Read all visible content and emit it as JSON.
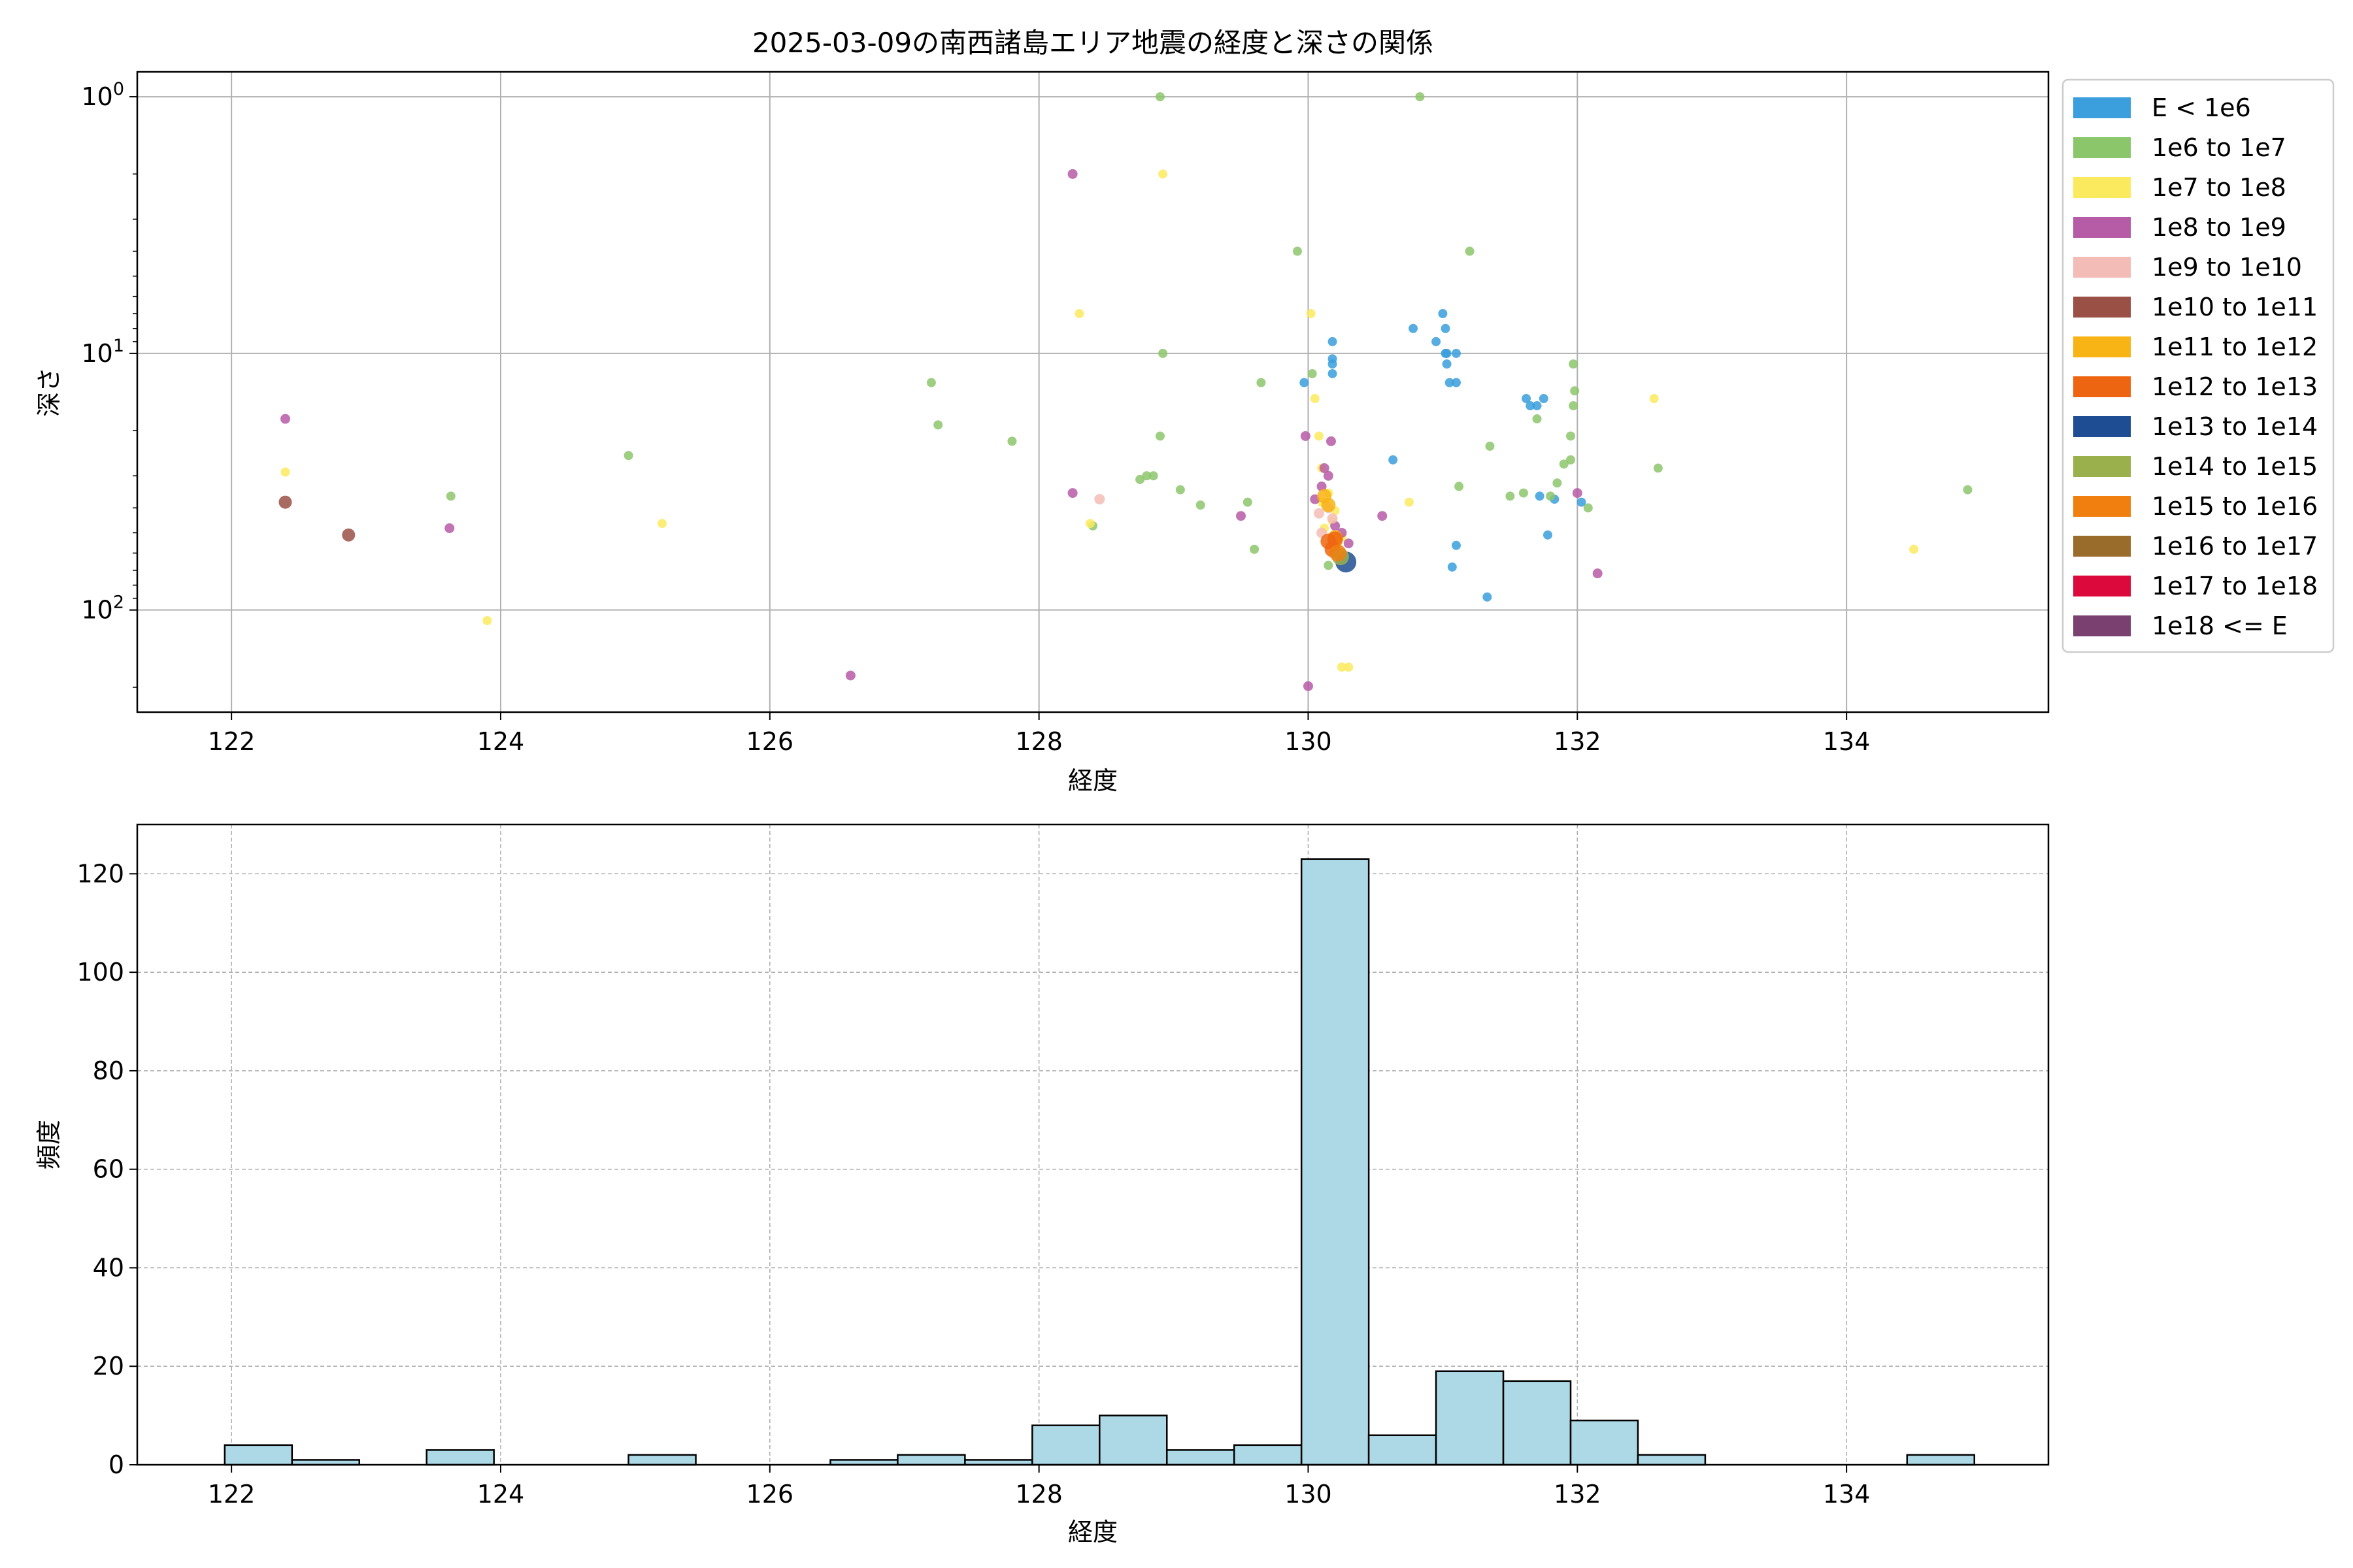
{
  "chart_data": [
    {
      "type": "scatter",
      "title": "2025-03-09の南西諸島エリア地震の経度と深さの関係",
      "xlabel": "経度",
      "ylabel": "深さ",
      "xlim": [
        121.3,
        135.5
      ],
      "ylim": [
        250,
        0.8
      ],
      "yscale": "log",
      "y_inverted": true,
      "grid": true,
      "x_ticks": [
        122,
        124,
        126,
        128,
        130,
        132,
        134
      ],
      "x_tick_labels": [
        "122",
        "124",
        "126",
        "128",
        "130",
        "132",
        "134"
      ],
      "y_ticks": [
        1,
        10,
        100
      ],
      "y_tick_labels": [
        {
          "base": "10",
          "exp": "0"
        },
        {
          "base": "10",
          "exp": "1"
        },
        {
          "base": "10",
          "exp": "2"
        }
      ],
      "legend_position": "outside-right",
      "legend": [
        {
          "label": "E < 1e6",
          "color": "#3a9fdc"
        },
        {
          "label": "1e6 to 1e7",
          "color": "#8cc66b"
        },
        {
          "label": "1e7 to 1e8",
          "color": "#fbea5e"
        },
        {
          "label": "1e8 to 1e9",
          "color": "#b65ba6"
        },
        {
          "label": "1e9 to 1e10",
          "color": "#f4bcb6"
        },
        {
          "label": "1e10 to 1e11",
          "color": "#9a5045"
        },
        {
          "label": "1e11 to 1e12",
          "color": "#f8b314"
        },
        {
          "label": "1e12 to 1e13",
          "color": "#ee6511"
        },
        {
          "label": "1e13 to 1e14",
          "color": "#1f4d93"
        },
        {
          "label": "1e14 to 1e15",
          "color": "#99b04d"
        },
        {
          "label": "1e15 to 1e16",
          "color": "#f07f10"
        },
        {
          "label": "1e16 to 1e17",
          "color": "#9a6c2c"
        },
        {
          "label": "1e17 to 1e18",
          "color": "#dc0a3c"
        },
        {
          "label": "1e18 <= E",
          "color": "#7a4070"
        }
      ],
      "series": [
        {
          "class": 0,
          "points": [
            [
              131.0,
              7
            ],
            [
              131.02,
              8
            ],
            [
              131.02,
              10
            ],
            [
              131.03,
              10
            ],
            [
              131.03,
              11
            ],
            [
              131.1,
              10
            ],
            [
              130.78,
              8
            ],
            [
              130.95,
              9
            ],
            [
              131.05,
              13
            ],
            [
              131.1,
              13
            ],
            [
              130.18,
              9
            ],
            [
              130.18,
              11
            ],
            [
              130.18,
              12
            ],
            [
              130.18,
              10.5
            ],
            [
              129.97,
              13
            ],
            [
              130.63,
              26
            ],
            [
              131.62,
              15
            ],
            [
              131.65,
              16
            ],
            [
              131.7,
              16
            ],
            [
              131.75,
              15
            ],
            [
              131.72,
              36
            ],
            [
              131.83,
              37
            ],
            [
              131.78,
              51
            ],
            [
              132.03,
              38
            ],
            [
              131.1,
              56
            ],
            [
              131.07,
              68
            ],
            [
              131.33,
              89
            ]
          ]
        },
        {
          "class": 1,
          "points": [
            [
              128.9,
              1
            ],
            [
              130.83,
              1
            ],
            [
              129.92,
              4
            ],
            [
              131.2,
              4
            ],
            [
              128.92,
              10
            ],
            [
              127.2,
              13
            ],
            [
              127.25,
              19
            ],
            [
              127.8,
              22
            ],
            [
              128.9,
              21
            ],
            [
              124.95,
              25
            ],
            [
              123.63,
              36
            ],
            [
              128.4,
              47
            ],
            [
              128.75,
              31
            ],
            [
              128.8,
              30
            ],
            [
              128.85,
              30
            ],
            [
              129.05,
              34
            ],
            [
              129.2,
              39
            ],
            [
              129.55,
              38
            ],
            [
              129.6,
              58
            ],
            [
              129.65,
              13
            ],
            [
              130.03,
              12
            ],
            [
              131.35,
              23
            ],
            [
              131.12,
              33
            ],
            [
              131.5,
              36
            ],
            [
              131.6,
              35
            ],
            [
              131.7,
              18
            ],
            [
              131.8,
              36
            ],
            [
              131.85,
              32
            ],
            [
              131.9,
              27
            ],
            [
              131.95,
              26
            ],
            [
              131.95,
              21
            ],
            [
              131.97,
              16
            ],
            [
              131.98,
              14
            ],
            [
              131.97,
              11
            ],
            [
              132.08,
              40
            ],
            [
              132.6,
              28
            ],
            [
              134.9,
              34
            ],
            [
              130.15,
              67
            ],
            [
              130.2,
              60
            ]
          ]
        },
        {
          "class": 2,
          "points": [
            [
              128.92,
              2
            ],
            [
              128.3,
              7
            ],
            [
              130.02,
              7
            ],
            [
              130.05,
              15
            ],
            [
              130.08,
              21
            ],
            [
              132.57,
              15
            ],
            [
              122.4,
              29
            ],
            [
              125.2,
              46
            ],
            [
              123.9,
              110
            ],
            [
              128.38,
              46
            ],
            [
              130.75,
              38
            ],
            [
              134.5,
              58
            ],
            [
              130.3,
              167
            ],
            [
              130.25,
              167
            ],
            [
              130.1,
              28
            ],
            [
              130.15,
              35
            ],
            [
              130.2,
              41
            ],
            [
              130.12,
              48
            ],
            [
              130.22,
              55
            ],
            [
              130.25,
              52
            ],
            [
              130.18,
              45
            ],
            [
              130.1,
              38
            ]
          ]
        },
        {
          "class": 3,
          "points": [
            [
              128.25,
              2
            ],
            [
              122.4,
              18
            ],
            [
              123.62,
              48
            ],
            [
              128.25,
              35
            ],
            [
              126.6,
              180
            ],
            [
              130.0,
              198
            ],
            [
              129.98,
              21
            ],
            [
              130.17,
              22
            ],
            [
              129.5,
              43
            ],
            [
              130.55,
              43
            ],
            [
              132.0,
              35
            ],
            [
              132.15,
              72
            ],
            [
              130.3,
              55
            ],
            [
              130.12,
              28
            ],
            [
              130.1,
              33
            ],
            [
              130.15,
              30
            ],
            [
              130.05,
              37
            ],
            [
              130.2,
              47
            ],
            [
              130.25,
              50
            ]
          ]
        },
        {
          "class": 4,
          "points": [
            [
              128.45,
              37
            ],
            [
              130.15,
              40
            ],
            [
              130.08,
              42
            ],
            [
              130.1,
              50
            ],
            [
              130.18,
              44
            ]
          ]
        },
        {
          "class": 5,
          "points": [
            [
              122.4,
              38
            ],
            [
              122.87,
              51
            ]
          ]
        },
        {
          "class": 6,
          "points": [
            [
              130.12,
              36
            ],
            [
              130.15,
              39
            ],
            [
              130.2,
              52
            ]
          ]
        },
        {
          "class": 7,
          "points": [
            [
              130.15,
              54
            ],
            [
              130.2,
              53
            ],
            [
              130.18,
              58
            ]
          ]
        },
        {
          "class": 8,
          "points": [
            [
              130.28,
              65
            ]
          ]
        },
        {
          "class": 9,
          "points": [
            [
              130.24,
              62
            ]
          ]
        },
        {
          "class": 10,
          "points": [
            [
              130.22,
              60
            ]
          ]
        }
      ]
    },
    {
      "type": "bar",
      "subtype": "histogram",
      "xlabel": "経度",
      "ylabel": "頻度",
      "xlim": [
        121.3,
        135.5
      ],
      "ylim": [
        0,
        130
      ],
      "grid": true,
      "bin_width": 0.5,
      "bar_color": "#add8e6",
      "x_ticks": [
        122,
        124,
        126,
        128,
        130,
        132,
        134
      ],
      "x_tick_labels": [
        "122",
        "124",
        "126",
        "128",
        "130",
        "132",
        "134"
      ],
      "y_ticks": [
        0,
        20,
        40,
        60,
        80,
        100,
        120
      ],
      "y_tick_labels": [
        "0",
        "20",
        "40",
        "60",
        "80",
        "100",
        "120"
      ],
      "bins": [
        {
          "x": 121.95,
          "count": 4
        },
        {
          "x": 122.45,
          "count": 1
        },
        {
          "x": 123.45,
          "count": 3
        },
        {
          "x": 124.95,
          "count": 2
        },
        {
          "x": 126.45,
          "count": 1
        },
        {
          "x": 126.95,
          "count": 2
        },
        {
          "x": 127.45,
          "count": 1
        },
        {
          "x": 127.95,
          "count": 8
        },
        {
          "x": 128.45,
          "count": 10
        },
        {
          "x": 128.95,
          "count": 3
        },
        {
          "x": 129.45,
          "count": 4
        },
        {
          "x": 129.95,
          "count": 123
        },
        {
          "x": 130.45,
          "count": 6
        },
        {
          "x": 130.95,
          "count": 19
        },
        {
          "x": 131.45,
          "count": 17
        },
        {
          "x": 131.95,
          "count": 9
        },
        {
          "x": 132.45,
          "count": 2
        },
        {
          "x": 134.45,
          "count": 2
        }
      ]
    }
  ]
}
